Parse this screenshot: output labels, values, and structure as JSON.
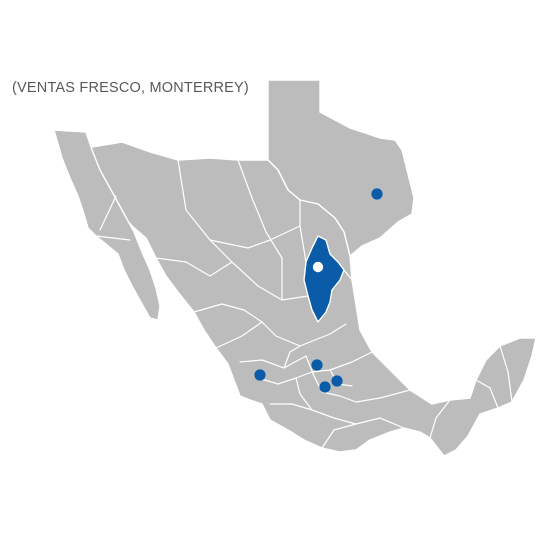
{
  "caption": "(VENTAS FRESCO, MONTERREY)",
  "colors": {
    "land": "#bdbcbd",
    "borders": "#ffffff",
    "highlight_state": "#0a5ba8",
    "location_marker": "#0a5ba8",
    "hub_marker": "#ffffff",
    "caption_text": "#58595b"
  },
  "highlighted_region": "nuevo-leon",
  "markers": [
    {
      "id": "hub-monterrey",
      "kind": "hub"
    },
    {
      "id": "texas",
      "kind": "location"
    },
    {
      "id": "guadalajara",
      "kind": "location"
    },
    {
      "id": "queretaro",
      "kind": "location"
    },
    {
      "id": "mexico-city",
      "kind": "location"
    },
    {
      "id": "pachuca",
      "kind": "location"
    }
  ]
}
